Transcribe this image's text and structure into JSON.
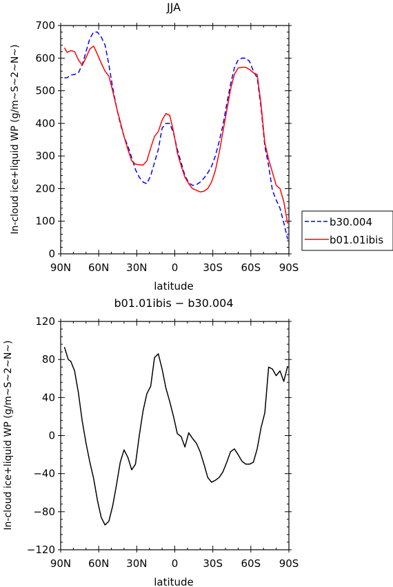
{
  "chart_data": [
    {
      "type": "line",
      "title": "JJA",
      "xlabel": "latitude",
      "ylabel": "In-cloud ice+liquid WP (g/m~S~2~N~)",
      "xlim": [
        90,
        -90
      ],
      "ylim": [
        0,
        700
      ],
      "x_ticks": [
        90,
        60,
        30,
        0,
        -30,
        -60,
        -90
      ],
      "x_tick_labels": [
        "90N",
        "60N",
        "30N",
        "0",
        "30S",
        "60S",
        "90S"
      ],
      "y_ticks": [
        0,
        100,
        200,
        300,
        400,
        500,
        600,
        700
      ],
      "y_tick_labels": [
        "0",
        "100",
        "200",
        "300",
        "400",
        "500",
        "600",
        "700"
      ],
      "legend_position": "right",
      "series": [
        {
          "name": "b30.004",
          "color": "#0000ff",
          "dash": true,
          "x": [
            87,
            85,
            82,
            79,
            76,
            73,
            70,
            67,
            64,
            61,
            58,
            55,
            52,
            49,
            46,
            43,
            40,
            37,
            34,
            31,
            28,
            25,
            22,
            19,
            16,
            13,
            10,
            7,
            4,
            1,
            -2,
            -5,
            -8,
            -11,
            -14,
            -17,
            -20,
            -23,
            -26,
            -29,
            -32,
            -35,
            -38,
            -41,
            -44,
            -47,
            -50,
            -53,
            -56,
            -59,
            -62,
            -65,
            -68,
            -71,
            -74,
            -77,
            -80,
            -83,
            -86,
            -89
          ],
          "y": [
            540,
            540,
            548,
            550,
            555,
            580,
            620,
            660,
            680,
            680,
            665,
            640,
            580,
            510,
            450,
            400,
            360,
            330,
            295,
            258,
            235,
            220,
            215,
            240,
            280,
            320,
            385,
            400,
            400,
            370,
            320,
            280,
            240,
            218,
            210,
            212,
            220,
            232,
            248,
            268,
            300,
            345,
            395,
            460,
            520,
            570,
            595,
            600,
            600,
            590,
            560,
            540,
            450,
            330,
            270,
            195,
            165,
            140,
            95,
            45
          ]
        },
        {
          "name": "b01.01ibis",
          "color": "#ff0000",
          "dash": false,
          "x": [
            87,
            85,
            82,
            79,
            76,
            73,
            70,
            67,
            64,
            61,
            58,
            55,
            52,
            49,
            46,
            43,
            40,
            37,
            34,
            31,
            28,
            25,
            22,
            19,
            16,
            13,
            10,
            7,
            4,
            1,
            -2,
            -5,
            -8,
            -11,
            -14,
            -17,
            -20,
            -23,
            -26,
            -29,
            -32,
            -35,
            -38,
            -41,
            -44,
            -47,
            -50,
            -53,
            -56,
            -59,
            -62,
            -65,
            -68,
            -71,
            -74,
            -77,
            -80,
            -83,
            -86,
            -89
          ],
          "y": [
            632,
            618,
            623,
            620,
            595,
            578,
            602,
            628,
            637,
            612,
            585,
            560,
            545,
            500,
            450,
            405,
            360,
            320,
            285,
            275,
            273,
            272,
            285,
            325,
            360,
            375,
            410,
            430,
            425,
            375,
            310,
            270,
            235,
            215,
            200,
            195,
            190,
            192,
            200,
            220,
            255,
            310,
            375,
            440,
            505,
            550,
            570,
            572,
            572,
            565,
            555,
            550,
            460,
            340,
            290,
            250,
            210,
            200,
            160,
            93
          ]
        }
      ]
    },
    {
      "type": "line",
      "title": "b01.01ibis − b30.004",
      "xlabel": "latitude",
      "ylabel": "In-cloud ice+liquid WP (g/m~S~2~N~)",
      "xlim": [
        90,
        -90
      ],
      "ylim": [
        -120,
        120
      ],
      "x_ticks": [
        90,
        60,
        30,
        0,
        -30,
        -60,
        -90
      ],
      "x_tick_labels": [
        "90N",
        "60N",
        "30N",
        "0",
        "30S",
        "60S",
        "90S"
      ],
      "y_ticks": [
        -120,
        -80,
        -40,
        0,
        40,
        80,
        120
      ],
      "y_tick_labels": [
        "−120",
        "−80",
        "−40",
        "0",
        "40",
        "80",
        "120"
      ],
      "series": [
        {
          "name": "",
          "color": "#000000",
          "dash": false,
          "x": [
            87,
            84,
            82,
            79,
            76,
            73,
            70,
            67,
            64,
            61,
            58,
            55,
            52,
            49,
            46,
            43,
            40,
            37,
            34,
            31,
            28,
            25,
            22,
            19,
            16,
            13,
            10,
            7,
            4,
            1,
            -2,
            -5,
            -8,
            -11,
            -14,
            -17,
            -20,
            -23,
            -26,
            -29,
            -32,
            -35,
            -38,
            -41,
            -44,
            -47,
            -50,
            -53,
            -56,
            -59,
            -62,
            -65,
            -68,
            -71,
            -74,
            -77,
            -80,
            -83,
            -86,
            -89
          ],
          "y": [
            93,
            80,
            78,
            68,
            45,
            15,
            -8,
            -28,
            -45,
            -68,
            -86,
            -94,
            -90,
            -74,
            -52,
            -28,
            -15,
            -23,
            -36,
            -30,
            0,
            26,
            44,
            52,
            82,
            86,
            70,
            50,
            36,
            20,
            2,
            -1,
            -12,
            3,
            -3,
            -8,
            -17,
            -30,
            -44,
            -49,
            -47,
            -44,
            -38,
            -28,
            -17,
            -14,
            -20,
            -27,
            -30,
            -30,
            -28,
            -14,
            8,
            24,
            72,
            70,
            63,
            68,
            57,
            73
          ]
        }
      ]
    }
  ]
}
